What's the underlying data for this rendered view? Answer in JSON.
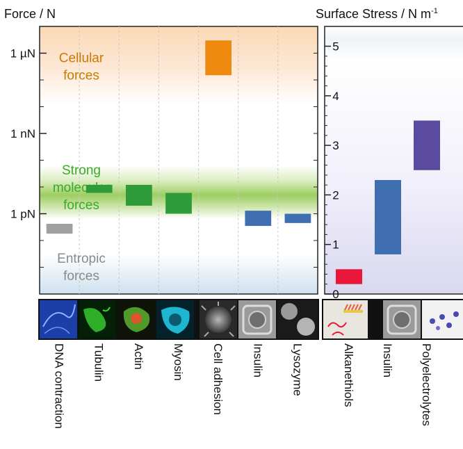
{
  "chart_data": [
    {
      "type": "bar",
      "ylabel": "Force / N",
      "yscale": "log",
      "yticks": [
        {
          "label": "1 µN",
          "value": 1e-06
        },
        {
          "label": "1 nN",
          "value": 1e-09
        },
        {
          "label": "1 pN",
          "value": 1e-12
        }
      ],
      "ylim": [
        1e-15,
        1e-05
      ],
      "regions": [
        {
          "label": "Cellular forces",
          "lines": [
            "Cellular",
            "forces"
          ],
          "range": [
            1e-08,
            1e-05
          ],
          "color": "#cc7a00"
        },
        {
          "label": "Strong molecular forces",
          "lines": [
            "Strong",
            "molecular",
            "forces"
          ],
          "range": [
            3e-12,
            3e-11
          ],
          "color": "#3aaa2a"
        },
        {
          "label": "Entropic forces",
          "lines": [
            "Entropic",
            "forces"
          ],
          "range": [
            1e-15,
            1e-13
          ],
          "color": "#8a8a8a"
        }
      ],
      "categories": [
        "DNA contraction",
        "Tubulin",
        "Actin",
        "Myosin",
        "Cell adhesion",
        "Insulin",
        "Lysozyme"
      ],
      "ranges": [
        [
          1.8e-13,
          4.2e-13
        ],
        [
          6e-12,
          1.2e-11
        ],
        [
          2e-12,
          1.2e-11
        ],
        [
          1e-12,
          6e-12
        ],
        [
          1.5e-07,
          3e-06
        ],
        [
          3.5e-13,
          1.3e-12
        ],
        [
          4.5e-13,
          1e-12
        ]
      ],
      "colors": [
        "#a0a0a0",
        "#2e9a3a",
        "#2e9a3a",
        "#2e9a3a",
        "#ef8a10",
        "#3f6fb0",
        "#3f6fb0"
      ]
    },
    {
      "type": "bar",
      "ylabel": "Surface Stress / N m",
      "ylabel_sup": "-1",
      "yticks": [
        0,
        1,
        2,
        3,
        4,
        5
      ],
      "ylim": [
        0,
        5.4
      ],
      "categories": [
        "Alkanethiols",
        "Insulin",
        "Polyelectrolytes"
      ],
      "ranges": [
        [
          0.2,
          0.5
        ],
        [
          0.8,
          2.3
        ],
        [
          2.5,
          3.5
        ]
      ],
      "colors": [
        "#e8173a",
        "#3f6fb0",
        "#5a4aa0"
      ]
    }
  ],
  "thumbnails": {
    "left": [
      "DNA contraction image",
      "Tubulin image",
      "Actin image",
      "Myosin image",
      "Cell adhesion image",
      "Insulin image",
      "Lysozyme image"
    ],
    "right": [
      "Alkanethiols image",
      "Insulin image",
      "Polyelectrolytes image"
    ]
  }
}
